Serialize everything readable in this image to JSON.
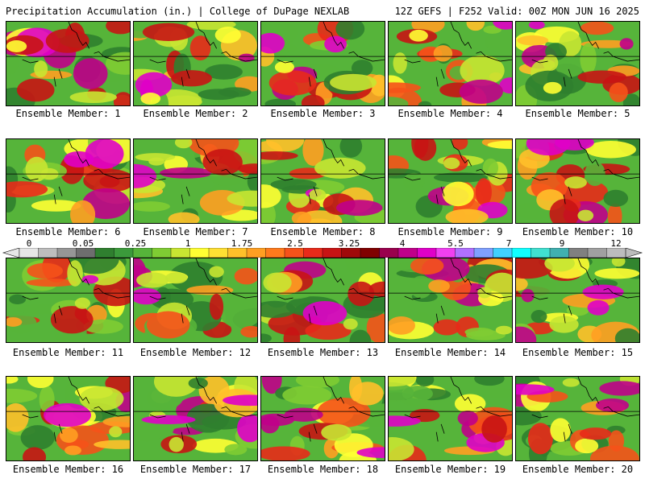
{
  "header": {
    "left": "Precipitation Accumulation (in.) | College of DuPage NEXLAB",
    "right": "12Z GEFS | F252 Valid: 00Z MON JUN 16 2025"
  },
  "member_prefix": "Ensemble Member: ",
  "members": [
    "1",
    "2",
    "3",
    "4",
    "5",
    "6",
    "7",
    "8",
    "9",
    "10",
    "11",
    "12",
    "13",
    "14",
    "15",
    "16",
    "17",
    "18",
    "19",
    "20"
  ],
  "colorbar": {
    "tick_labels": [
      "0",
      "0.05",
      "0.25",
      "1",
      "1.75",
      "2.5",
      "3.25",
      "4",
      "5.5",
      "7",
      "9",
      "12"
    ],
    "colors": [
      "#e6e6e6",
      "#bdbdbd",
      "#969696",
      "#6e6e6e",
      "#2f7f2f",
      "#3b9a3b",
      "#56b43a",
      "#7fcc33",
      "#c8e632",
      "#ffff33",
      "#ffe033",
      "#ffc02a",
      "#ff9f22",
      "#ff7a1c",
      "#f5521a",
      "#e82a1a",
      "#c81414",
      "#a00a0a",
      "#800000",
      "#99004d",
      "#c0008a",
      "#e000c8",
      "#f040f0",
      "#b070ff",
      "#7fa0ff",
      "#40d0ff",
      "#10ffff",
      "#40e0d0",
      "#40b0b0",
      "#808080",
      "#a0a0a0",
      "#bcbcbc"
    ]
  }
}
